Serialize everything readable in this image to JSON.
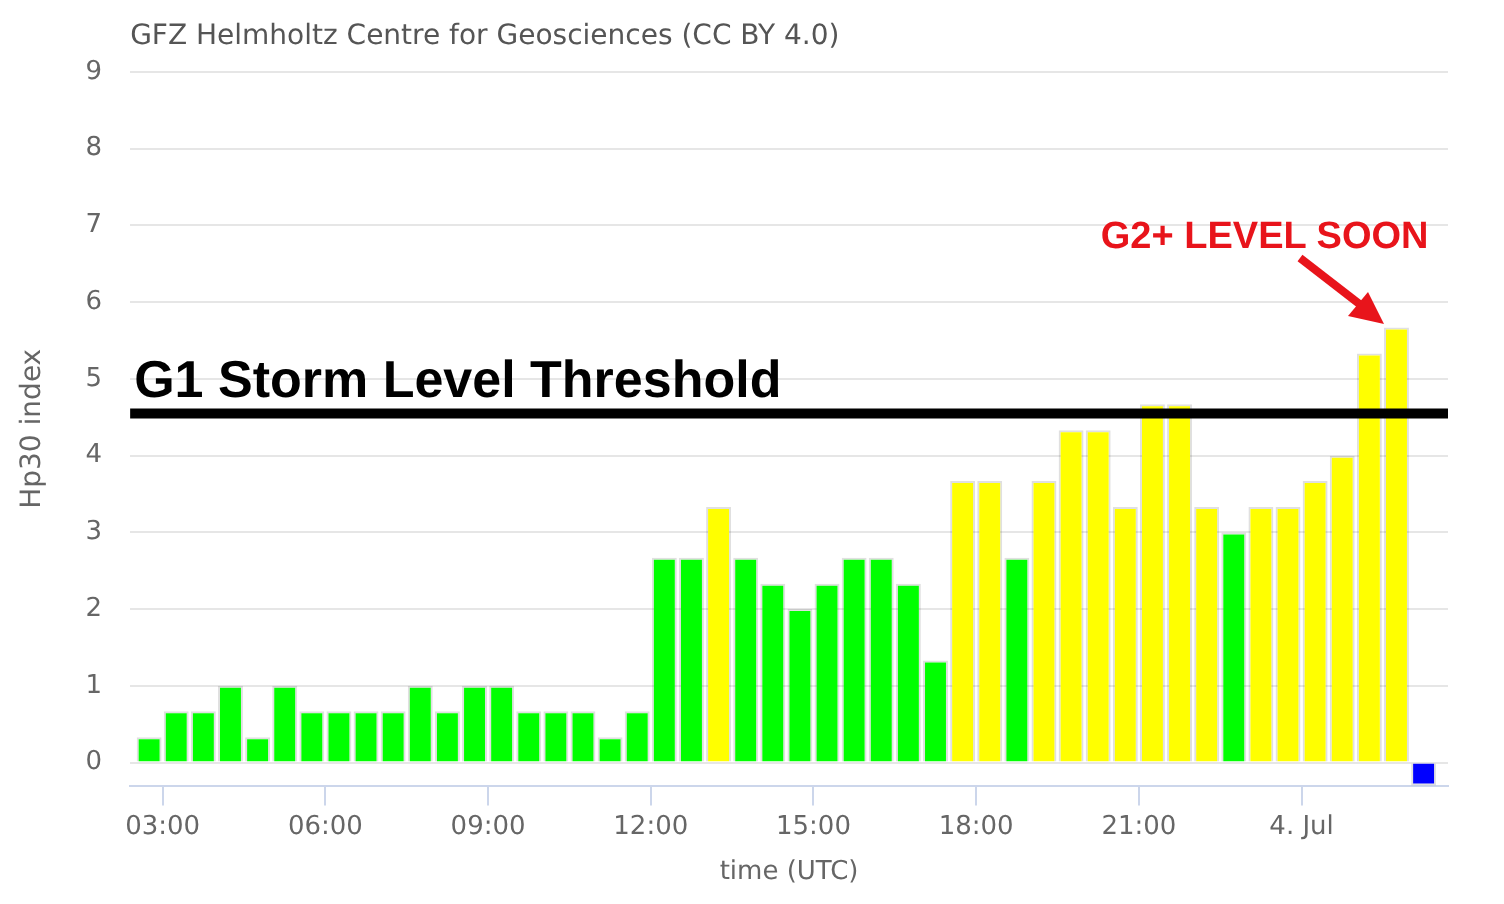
{
  "chart_data": {
    "type": "bar",
    "title": "GFZ Helmholtz Centre for Geosciences (CC BY 4.0)",
    "xlabel": "time (UTC)",
    "ylabel": "Hp30 index",
    "x": [
      2.75,
      3.25,
      3.75,
      4.25,
      4.75,
      5.25,
      5.75,
      6.25,
      6.75,
      7.25,
      7.75,
      8.25,
      8.75,
      9.25,
      9.75,
      10.25,
      10.75,
      11.25,
      11.75,
      12.25,
      12.75,
      13.25,
      13.75,
      14.25,
      14.75,
      15.25,
      15.75,
      16.25,
      16.75,
      17.25,
      17.75,
      18.25,
      18.75,
      19.25,
      19.75,
      20.25,
      20.75,
      21.25,
      21.75,
      22.25,
      22.75,
      23.25,
      23.75,
      24.25,
      24.75,
      25.25,
      25.75,
      26.25
    ],
    "values": [
      0.33,
      0.67,
      0.67,
      1,
      0.33,
      1,
      0.67,
      0.67,
      0.67,
      0.67,
      1,
      0.67,
      1,
      1,
      0.67,
      0.67,
      0.67,
      0.33,
      0.67,
      2.67,
      2.67,
      3.33,
      2.67,
      2.33,
      2,
      2.33,
      2.67,
      2.67,
      2.33,
      1.33,
      3.67,
      3.67,
      2.67,
      3.67,
      4.33,
      4.33,
      3.33,
      4.67,
      4.67,
      3.33,
      3,
      3.33,
      3.33,
      3.67,
      4,
      5.33,
      5.67,
      -0.3
    ],
    "colors": [
      "#00ff00",
      "#00ff00",
      "#00ff00",
      "#00ff00",
      "#00ff00",
      "#00ff00",
      "#00ff00",
      "#00ff00",
      "#00ff00",
      "#00ff00",
      "#00ff00",
      "#00ff00",
      "#00ff00",
      "#00ff00",
      "#00ff00",
      "#00ff00",
      "#00ff00",
      "#00ff00",
      "#00ff00",
      "#00ff00",
      "#00ff00",
      "#ffff00",
      "#00ff00",
      "#00ff00",
      "#00ff00",
      "#00ff00",
      "#00ff00",
      "#00ff00",
      "#00ff00",
      "#00ff00",
      "#ffff00",
      "#ffff00",
      "#00ff00",
      "#ffff00",
      "#ffff00",
      "#ffff00",
      "#ffff00",
      "#ffff00",
      "#ffff00",
      "#ffff00",
      "#00ff00",
      "#ffff00",
      "#ffff00",
      "#ffff00",
      "#ffff00",
      "#ffff00",
      "#ffff00",
      "#0000ff"
    ],
    "xlim": [
      2.4,
      26.7
    ],
    "xticks": [
      {
        "value": 3,
        "label": "03:00"
      },
      {
        "value": 6,
        "label": "06:00"
      },
      {
        "value": 9,
        "label": "09:00"
      },
      {
        "value": 12,
        "label": "12:00"
      },
      {
        "value": 15,
        "label": "15:00"
      },
      {
        "value": 18,
        "label": "18:00"
      },
      {
        "value": 21,
        "label": "21:00"
      },
      {
        "value": 24,
        "label": "4. Jul"
      }
    ],
    "ylim": [
      -0.3,
      9
    ],
    "yticks": [
      0,
      1,
      2,
      3,
      4,
      5,
      6,
      7,
      8,
      9
    ],
    "grid": "y",
    "legend": false,
    "ref_lines": [
      {
        "axis": "y",
        "value": 4.55,
        "label": "G1 Storm Level Threshold",
        "color": "#000000"
      }
    ],
    "annotations": [
      {
        "text": "G2+ LEVEL SOON",
        "x": 25.75,
        "y": 5.67
      }
    ]
  }
}
